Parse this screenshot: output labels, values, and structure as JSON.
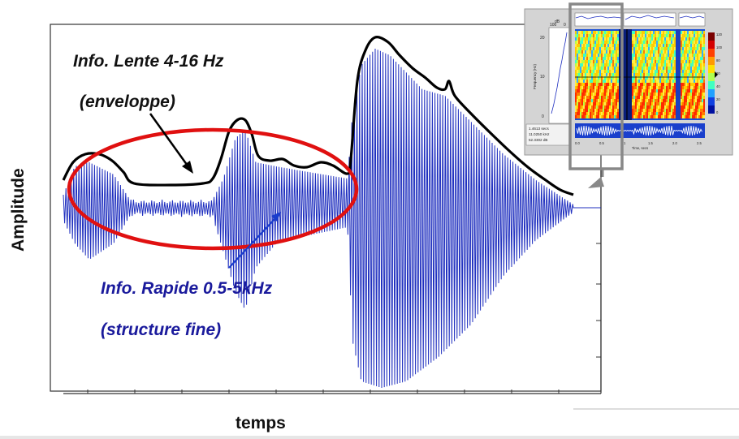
{
  "axes": {
    "ylabel": "Amplitude",
    "xlabel": "temps"
  },
  "annotations": {
    "slow_line1": "Info. Lente 4-16 Hz",
    "slow_line2": "(enveloppe)",
    "fast_line1": "Info. Rapide 0.5-5kHz",
    "fast_line2": "(structure fine)"
  },
  "colors": {
    "waveform": "#1f2fbf",
    "envelope": "#000000",
    "ellipse": "#e01010",
    "fast_text": "#1a1a9c",
    "slow_text": "#111111"
  },
  "inset": {
    "left_top_label": "dB",
    "left_tick_top": "100",
    "left_tick_bottom": "0",
    "left_num1": "20",
    "left_num2": "10",
    "left_num3": "0",
    "y_axis_label": "Frequency (Hz)",
    "info_line1": "1.4613 secs",
    "info_line2": "11.0250 kHz",
    "info_line3": "52.3302 dB",
    "time_axis_label": "Time, secs",
    "time_ticks": [
      "0.0",
      "0.5",
      "1",
      "1.5",
      "2.0",
      "2.5"
    ],
    "colorbar_ticks": [
      "120",
      "100",
      "80",
      "60",
      "40",
      "20",
      "0"
    ]
  }
}
